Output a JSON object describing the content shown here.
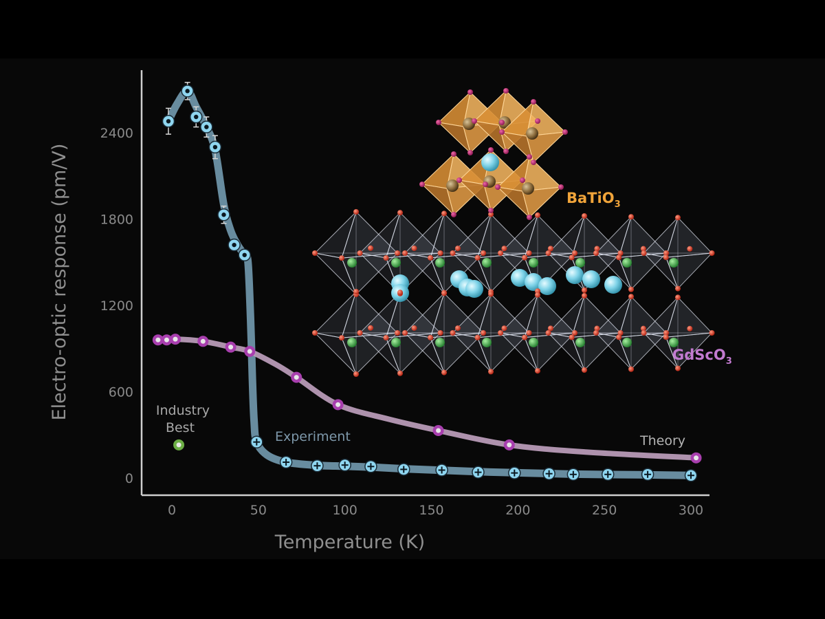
{
  "chart_data": {
    "type": "scatter",
    "xlabel": "Temperature (K)",
    "ylabel": "Electro-optic response (pm/V)",
    "xlim": [
      -15,
      312
    ],
    "ylim": [
      -100,
      2850
    ],
    "xticks": [
      0,
      50,
      100,
      150,
      200,
      250,
      300
    ],
    "yticks": [
      0,
      600,
      1200,
      1800,
      2400
    ],
    "series": [
      {
        "name": "Experiment",
        "color": "#8fd6f0",
        "curve_color": "#6e93a8",
        "marker": "circle-plus",
        "points": [
          {
            "x": -2,
            "y": 2480,
            "err": 90
          },
          {
            "x": 9,
            "y": 2690,
            "err": 60
          },
          {
            "x": 14,
            "y": 2510,
            "err": 70
          },
          {
            "x": 20,
            "y": 2440,
            "err": 70
          },
          {
            "x": 25,
            "y": 2300,
            "err": 80
          },
          {
            "x": 30,
            "y": 1830,
            "err": 60
          },
          {
            "x": 36,
            "y": 1620,
            "err": 0
          },
          {
            "x": 42,
            "y": 1550,
            "err": 0
          },
          {
            "x": 49,
            "y": 250,
            "err": 0
          },
          {
            "x": 66,
            "y": 110,
            "err": 0
          },
          {
            "x": 84,
            "y": 85,
            "err": 0
          },
          {
            "x": 100,
            "y": 90,
            "err": 0
          },
          {
            "x": 115,
            "y": 80,
            "err": 0
          },
          {
            "x": 134,
            "y": 60,
            "err": 0
          },
          {
            "x": 156,
            "y": 55,
            "err": 0
          },
          {
            "x": 177,
            "y": 40,
            "err": 0
          },
          {
            "x": 198,
            "y": 35,
            "err": 0
          },
          {
            "x": 218,
            "y": 30,
            "err": 0
          },
          {
            "x": 232,
            "y": 25,
            "err": 0
          },
          {
            "x": 252,
            "y": 25,
            "err": 0
          },
          {
            "x": 275,
            "y": 25,
            "err": 0
          },
          {
            "x": 300,
            "y": 18,
            "err": 0
          }
        ],
        "curve": [
          [
            -2,
            2480
          ],
          [
            3,
            2600
          ],
          [
            9,
            2690
          ],
          [
            14,
            2580
          ],
          [
            20,
            2440
          ],
          [
            25,
            2280
          ],
          [
            30,
            1900
          ],
          [
            34,
            1720
          ],
          [
            38,
            1620
          ],
          [
            42,
            1550
          ],
          [
            44,
            1500
          ],
          [
            45.5,
            1100
          ],
          [
            46.5,
            700
          ],
          [
            47.5,
            400
          ],
          [
            49,
            250
          ],
          [
            55,
            160
          ],
          [
            66,
            110
          ],
          [
            84,
            88
          ],
          [
            100,
            82
          ],
          [
            115,
            76
          ],
          [
            134,
            64
          ],
          [
            156,
            54
          ],
          [
            177,
            44
          ],
          [
            198,
            37
          ],
          [
            218,
            31
          ],
          [
            232,
            27
          ],
          [
            252,
            24
          ],
          [
            275,
            22
          ],
          [
            300,
            18
          ]
        ]
      },
      {
        "name": "Theory",
        "color": "#a83fae",
        "curve_color": "#b79ab6",
        "marker": "ring",
        "points": [
          {
            "x": -8,
            "y": 960
          },
          {
            "x": -3,
            "y": 960
          },
          {
            "x": 2,
            "y": 965
          },
          {
            "x": 18,
            "y": 950
          },
          {
            "x": 34,
            "y": 910
          },
          {
            "x": 45,
            "y": 880
          },
          {
            "x": 72,
            "y": 700
          },
          {
            "x": 96,
            "y": 510
          },
          {
            "x": 154,
            "y": 330
          },
          {
            "x": 195,
            "y": 230
          },
          {
            "x": 303,
            "y": 140
          }
        ],
        "curve": [
          [
            -8,
            960
          ],
          [
            2,
            965
          ],
          [
            18,
            950
          ],
          [
            34,
            910
          ],
          [
            45,
            880
          ],
          [
            60,
            790
          ],
          [
            72,
            700
          ],
          [
            96,
            510
          ],
          [
            125,
            410
          ],
          [
            154,
            330
          ],
          [
            195,
            230
          ],
          [
            240,
            180
          ],
          [
            303,
            140
          ]
        ]
      },
      {
        "name": "Industry Best",
        "color": "#6cae45",
        "marker": "ring",
        "points": [
          {
            "x": 4,
            "y": 230
          }
        ]
      }
    ],
    "annotations": [
      {
        "text": "Industry Best",
        "lines": [
          "Industry",
          "Best"
        ]
      },
      {
        "text": "Experiment"
      },
      {
        "text": "Theory"
      }
    ]
  },
  "inset": {
    "batio3": {
      "label": "BaTiO",
      "subscript": "3",
      "color": "#f0a43a"
    },
    "gdsco3": {
      "label": "GdScO",
      "subscript": "3",
      "color": "#c27ad0"
    }
  }
}
